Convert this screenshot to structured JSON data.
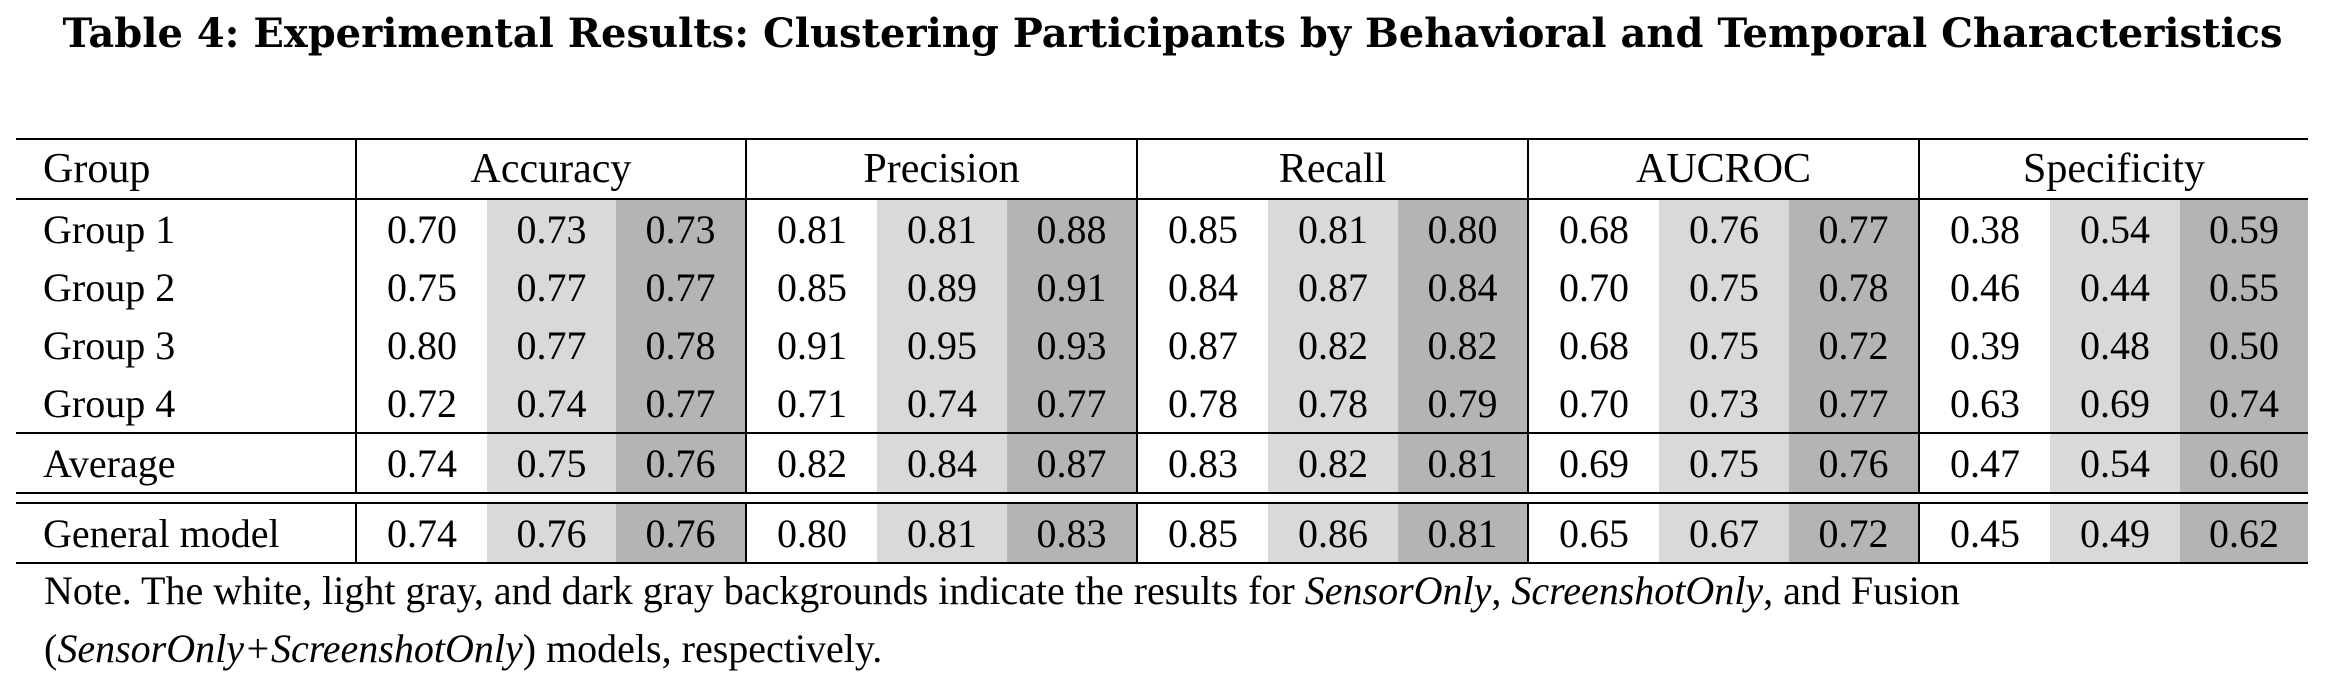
{
  "caption": "Table 4: Experimental Results: Clustering Participants by Behavioral and Temporal Characteristics",
  "header": {
    "group": "Group",
    "metrics": [
      "Accuracy",
      "Precision",
      "Recall",
      "AUCROC",
      "Specificity"
    ]
  },
  "rows": [
    {
      "label": "Group 1",
      "values": [
        "0.70",
        "0.73",
        "0.73",
        "0.81",
        "0.81",
        "0.88",
        "0.85",
        "0.81",
        "0.80",
        "0.68",
        "0.76",
        "0.77",
        "0.38",
        "0.54",
        "0.59"
      ]
    },
    {
      "label": "Group 2",
      "values": [
        "0.75",
        "0.77",
        "0.77",
        "0.85",
        "0.89",
        "0.91",
        "0.84",
        "0.87",
        "0.84",
        "0.70",
        "0.75",
        "0.78",
        "0.46",
        "0.44",
        "0.55"
      ]
    },
    {
      "label": "Group 3",
      "values": [
        "0.80",
        "0.77",
        "0.78",
        "0.91",
        "0.95",
        "0.93",
        "0.87",
        "0.82",
        "0.82",
        "0.68",
        "0.75",
        "0.72",
        "0.39",
        "0.48",
        "0.50"
      ]
    },
    {
      "label": "Group 4",
      "values": [
        "0.72",
        "0.74",
        "0.77",
        "0.71",
        "0.74",
        "0.77",
        "0.78",
        "0.78",
        "0.79",
        "0.70",
        "0.73",
        "0.77",
        "0.63",
        "0.69",
        "0.74"
      ]
    }
  ],
  "average": {
    "label": "Average",
    "values": [
      "0.74",
      "0.75",
      "0.76",
      "0.82",
      "0.84",
      "0.87",
      "0.83",
      "0.82",
      "0.81",
      "0.69",
      "0.75",
      "0.76",
      "0.47",
      "0.54",
      "0.60"
    ]
  },
  "general": {
    "label": "General model",
    "values": [
      "0.74",
      "0.76",
      "0.76",
      "0.80",
      "0.81",
      "0.83",
      "0.85",
      "0.86",
      "0.81",
      "0.65",
      "0.67",
      "0.72",
      "0.45",
      "0.49",
      "0.62"
    ]
  },
  "note": {
    "p1": "Note. The white, light gray, and dark gray backgrounds indicate the results for ",
    "m1": "SensorOnly",
    "p2": ", ",
    "m2": "ScreenshotOnly",
    "p3": ", and Fusion (",
    "m3": "SensorOnly+ScreenshotOnly",
    "p4": ") models, respectively."
  },
  "colors": {
    "light_gray": "#d9d9d9",
    "dark_gray": "#b4b4b4"
  }
}
